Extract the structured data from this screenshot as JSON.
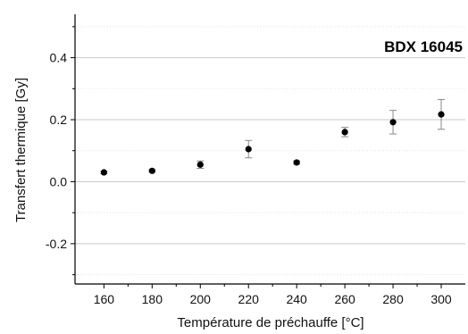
{
  "chart_data": {
    "type": "scatter",
    "annotation": "BDX 16045",
    "xlabel": "Température de préchauffe [°C]",
    "ylabel": "Transfert thermique [Gy]",
    "xlim": [
      148,
      310
    ],
    "ylim": [
      -0.33,
      0.54
    ],
    "x_ticks": [
      160,
      180,
      200,
      220,
      240,
      260,
      280,
      300
    ],
    "y_ticks": [
      -0.2,
      0.0,
      0.2,
      0.4
    ],
    "y_tick_labels": [
      "-0.2",
      "0.0",
      "0.2",
      "0.4"
    ],
    "grid": "horizontal",
    "series": [
      {
        "x": [
          160,
          180,
          200,
          220,
          240,
          260,
          280,
          300
        ],
        "y": [
          0.03,
          0.035,
          0.055,
          0.105,
          0.062,
          0.16,
          0.192,
          0.217
        ],
        "error": [
          0.004,
          0.004,
          0.012,
          0.028,
          0.005,
          0.015,
          0.038,
          0.048
        ]
      }
    ],
    "colors": {
      "marker": "#000000",
      "error_bar": "#888888",
      "grid": "#c8c8c8",
      "axis": "#000000"
    }
  }
}
